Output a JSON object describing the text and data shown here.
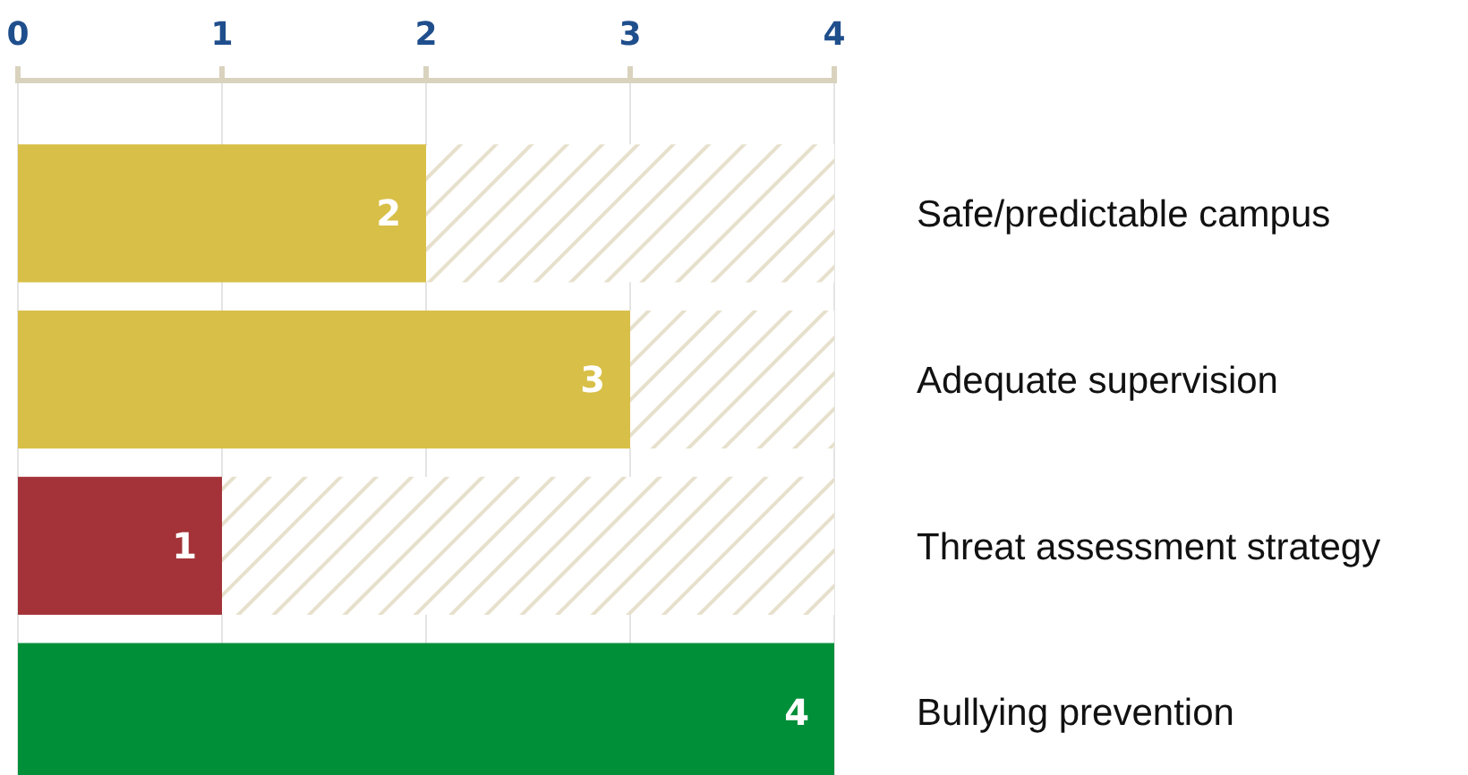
{
  "chart_data": {
    "type": "bar",
    "orientation": "horizontal",
    "stacked": true,
    "categories": [
      "Safe/predictable campus",
      "Adequate supervision",
      "Threat assessment strategy",
      "Bullying prevention"
    ],
    "series": [
      {
        "values": [
          2,
          3,
          1,
          4
        ],
        "colors": [
          "#d8bf47",
          "#d8bf47",
          "#a33338",
          "#008f39"
        ],
        "value_labels": [
          "2",
          "3",
          "1",
          "4"
        ]
      },
      {
        "values": [
          2,
          1,
          3,
          0
        ],
        "color": "#e6e0cc"
      }
    ],
    "xlim": [
      0,
      4
    ],
    "xticks": [
      0,
      1,
      2,
      3,
      4
    ],
    "grid": "x"
  }
}
